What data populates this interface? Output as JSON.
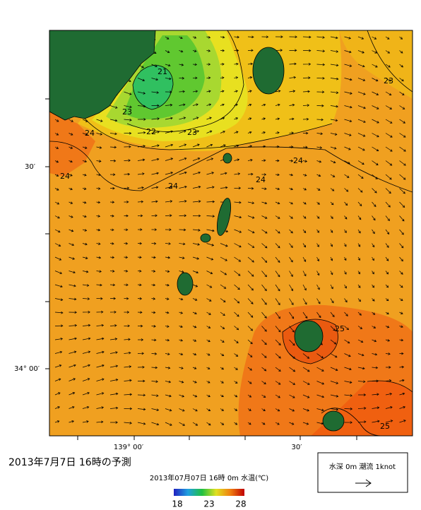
{
  "map": {
    "lat_labels": [
      "30′",
      "34° 00′"
    ],
    "lon_labels": [
      "139° 00′",
      "30′"
    ],
    "contour_labels": [
      21,
      22,
      23,
      23,
      24,
      24,
      24,
      24,
      24,
      23,
      25,
      25
    ]
  },
  "caption": "2013年7月7日 16時の予測",
  "colorbar": {
    "title": "2013年07月07日 16時 0m 水温(℃)",
    "ticks": [
      18,
      23,
      28
    ]
  },
  "legend": {
    "text": "水深 0m 潮流 1knot"
  }
}
